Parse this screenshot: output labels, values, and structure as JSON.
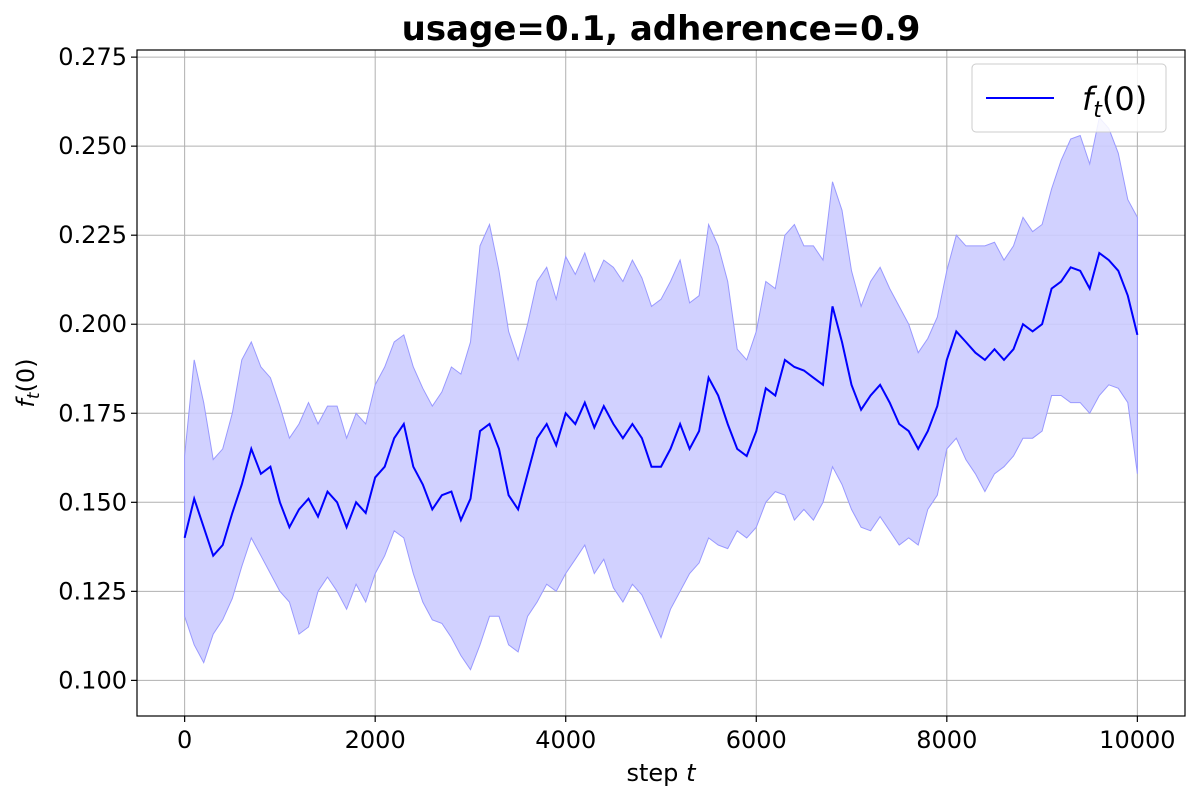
{
  "chart_data": {
    "type": "line",
    "title": "usage=0.1, adherence=0.9",
    "xlabel": "step",
    "xlabel_var": "t",
    "ylabel_main": "f",
    "ylabel_sub": "t",
    "ylabel_arg": "(0)",
    "xlim": [
      -500,
      10500
    ],
    "ylim": [
      0.09,
      0.277
    ],
    "x_ticks": [
      0,
      2000,
      4000,
      6000,
      8000,
      10000
    ],
    "x_tick_labels": [
      "0",
      "2000",
      "4000",
      "6000",
      "8000",
      "10000"
    ],
    "y_ticks": [
      0.1,
      0.125,
      0.15,
      0.175,
      0.2,
      0.225,
      0.25,
      0.275
    ],
    "y_tick_labels": [
      "0.100",
      "0.125",
      "0.150",
      "0.175",
      "0.200",
      "0.225",
      "0.250",
      "0.275"
    ],
    "grid": true,
    "legend": {
      "position": "top-right",
      "label_main": "f",
      "label_sub": "t",
      "label_arg": "(0)"
    },
    "line_color": "#0000ff",
    "band_color": "#ccccff",
    "band_edge_color": "#9999ff",
    "series": [
      {
        "name": "f_t(0)",
        "x": [
          0,
          100,
          200,
          300,
          400,
          500,
          600,
          700,
          800,
          900,
          1000,
          1100,
          1200,
          1300,
          1400,
          1500,
          1600,
          1700,
          1800,
          1900,
          2000,
          2100,
          2200,
          2300,
          2400,
          2500,
          2600,
          2700,
          2800,
          2900,
          3000,
          3100,
          3200,
          3300,
          3400,
          3500,
          3600,
          3700,
          3800,
          3900,
          4000,
          4100,
          4200,
          4300,
          4400,
          4500,
          4600,
          4700,
          4800,
          4900,
          5000,
          5100,
          5200,
          5300,
          5400,
          5500,
          5600,
          5700,
          5800,
          5900,
          6000,
          6100,
          6200,
          6300,
          6400,
          6500,
          6600,
          6700,
          6800,
          6900,
          7000,
          7100,
          7200,
          7300,
          7400,
          7500,
          7600,
          7700,
          7800,
          7900,
          8000,
          8100,
          8200,
          8300,
          8400,
          8500,
          8600,
          8700,
          8800,
          8900,
          9000,
          9100,
          9200,
          9300,
          9400,
          9500,
          9600,
          9700,
          9800,
          9900,
          10000
        ],
        "y": [
          0.14,
          0.151,
          0.143,
          0.135,
          0.138,
          0.147,
          0.155,
          0.165,
          0.158,
          0.16,
          0.15,
          0.143,
          0.148,
          0.151,
          0.146,
          0.153,
          0.15,
          0.143,
          0.15,
          0.147,
          0.157,
          0.16,
          0.168,
          0.172,
          0.16,
          0.155,
          0.148,
          0.152,
          0.153,
          0.145,
          0.151,
          0.17,
          0.172,
          0.165,
          0.152,
          0.148,
          0.158,
          0.168,
          0.172,
          0.166,
          0.175,
          0.172,
          0.178,
          0.171,
          0.177,
          0.172,
          0.168,
          0.172,
          0.168,
          0.16,
          0.16,
          0.165,
          0.172,
          0.165,
          0.17,
          0.185,
          0.18,
          0.172,
          0.165,
          0.163,
          0.17,
          0.182,
          0.18,
          0.19,
          0.188,
          0.187,
          0.185,
          0.183,
          0.205,
          0.195,
          0.183,
          0.176,
          0.18,
          0.183,
          0.178,
          0.172,
          0.17,
          0.165,
          0.17,
          0.177,
          0.19,
          0.198,
          0.195,
          0.192,
          0.19,
          0.193,
          0.19,
          0.193,
          0.2,
          0.198,
          0.2,
          0.21,
          0.212,
          0.216,
          0.215,
          0.21,
          0.22,
          0.218,
          0.215,
          0.208,
          0.197
        ],
        "y_lower": [
          0.118,
          0.11,
          0.105,
          0.113,
          0.117,
          0.123,
          0.132,
          0.14,
          0.135,
          0.13,
          0.125,
          0.122,
          0.113,
          0.115,
          0.125,
          0.129,
          0.125,
          0.12,
          0.127,
          0.122,
          0.13,
          0.135,
          0.142,
          0.14,
          0.13,
          0.122,
          0.117,
          0.116,
          0.112,
          0.107,
          0.103,
          0.11,
          0.118,
          0.118,
          0.11,
          0.108,
          0.118,
          0.122,
          0.127,
          0.125,
          0.13,
          0.134,
          0.138,
          0.13,
          0.134,
          0.126,
          0.122,
          0.127,
          0.124,
          0.118,
          0.112,
          0.12,
          0.125,
          0.13,
          0.133,
          0.14,
          0.138,
          0.137,
          0.142,
          0.14,
          0.143,
          0.15,
          0.153,
          0.152,
          0.145,
          0.148,
          0.145,
          0.15,
          0.16,
          0.155,
          0.148,
          0.143,
          0.142,
          0.146,
          0.142,
          0.138,
          0.14,
          0.138,
          0.148,
          0.152,
          0.165,
          0.168,
          0.162,
          0.158,
          0.153,
          0.158,
          0.16,
          0.163,
          0.168,
          0.168,
          0.17,
          0.18,
          0.18,
          0.178,
          0.178,
          0.175,
          0.18,
          0.183,
          0.182,
          0.178,
          0.158
        ],
        "y_upper": [
          0.163,
          0.19,
          0.178,
          0.162,
          0.165,
          0.175,
          0.19,
          0.195,
          0.188,
          0.185,
          0.177,
          0.168,
          0.172,
          0.178,
          0.172,
          0.177,
          0.177,
          0.168,
          0.175,
          0.172,
          0.183,
          0.188,
          0.195,
          0.197,
          0.188,
          0.182,
          0.177,
          0.181,
          0.188,
          0.186,
          0.195,
          0.222,
          0.228,
          0.215,
          0.198,
          0.19,
          0.2,
          0.212,
          0.216,
          0.207,
          0.219,
          0.214,
          0.22,
          0.212,
          0.218,
          0.216,
          0.212,
          0.218,
          0.213,
          0.205,
          0.207,
          0.212,
          0.218,
          0.206,
          0.208,
          0.228,
          0.222,
          0.212,
          0.193,
          0.19,
          0.198,
          0.212,
          0.21,
          0.225,
          0.228,
          0.222,
          0.222,
          0.218,
          0.24,
          0.232,
          0.215,
          0.205,
          0.212,
          0.216,
          0.21,
          0.205,
          0.2,
          0.192,
          0.196,
          0.202,
          0.215,
          0.225,
          0.222,
          0.222,
          0.222,
          0.223,
          0.218,
          0.222,
          0.23,
          0.226,
          0.228,
          0.238,
          0.246,
          0.252,
          0.253,
          0.245,
          0.258,
          0.255,
          0.248,
          0.235,
          0.23
        ]
      }
    ]
  }
}
